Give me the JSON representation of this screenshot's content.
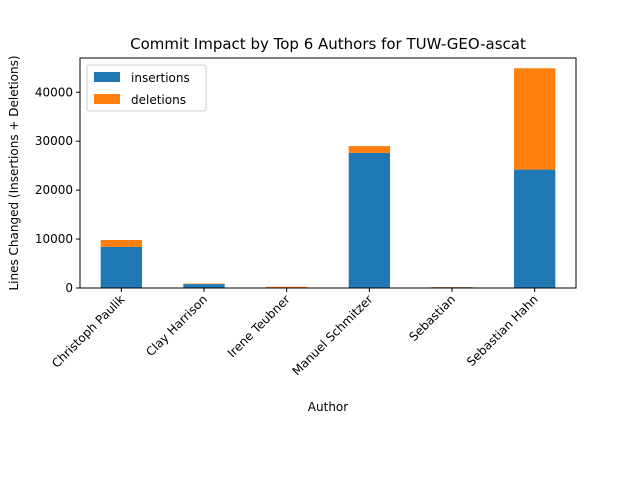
{
  "chart_data": {
    "type": "bar",
    "stacked": true,
    "title": "Commit Impact by Top 6 Authors for TUW-GEO-ascat",
    "xlabel": "Author",
    "ylabel": "Lines Changed (Insertions + Deletions)",
    "categories": [
      "Christoph Paulik",
      "Clay Harrison",
      "Irene Teubner",
      "Manuel Schmitzer",
      "Sebastian",
      "Sebastian Hahn"
    ],
    "series": [
      {
        "name": "insertions",
        "color": "#1f77b4",
        "values": [
          8400,
          800,
          100,
          27600,
          150,
          24200
        ]
      },
      {
        "name": "deletions",
        "color": "#ff7f0e",
        "values": [
          1400,
          100,
          150,
          1400,
          50,
          20700
        ]
      }
    ],
    "ylim": [
      0,
      47000
    ],
    "yticks": [
      0,
      10000,
      20000,
      30000,
      40000
    ],
    "grid": false,
    "legend_position": "top-left"
  }
}
